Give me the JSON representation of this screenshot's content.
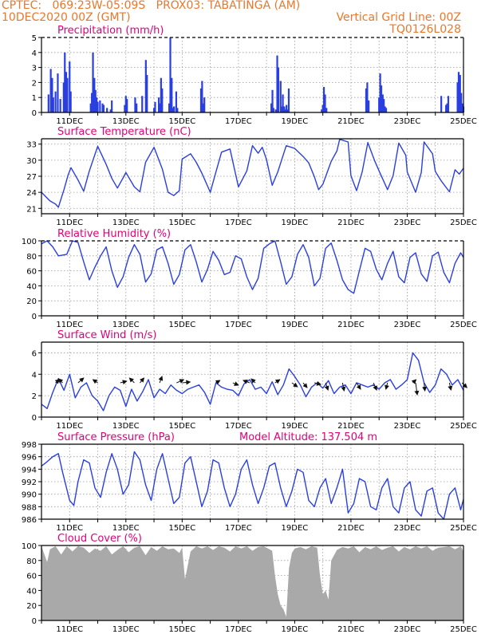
{
  "header": {
    "line1": "CPTEC:   069:23W-05:09S   PROX03: TABATINGA (AM)",
    "date": "10DEC2020 00Z (GMT)",
    "grid_note": "Vertical Grid Line: 00Z",
    "code": "TQ0126L028"
  },
  "colors": {
    "header_text": "#e8782c",
    "panel_title": "#e0007a",
    "series_line": "#2a3fe0",
    "bars": "#2a3fe0",
    "cloud_fill": "#a9a9a9",
    "wind_arrows": "#111111"
  },
  "chart_data": [
    {
      "id": "precip",
      "type": "bar",
      "title": "Precipitation (mm/h)",
      "x_range": [
        10,
        25
      ],
      "ylim": [
        0,
        5
      ],
      "yticks": [
        0,
        1,
        2,
        3,
        4,
        5
      ],
      "xticks": [
        "11DEC",
        "13DEC",
        "15DEC",
        "17DEC",
        "19DEC",
        "21DEC",
        "23DEC",
        "25DEC"
      ],
      "x": [
        10.25,
        10.33,
        10.38,
        10.42,
        10.5,
        10.58,
        10.67,
        10.79,
        10.83,
        10.88,
        10.92,
        11.0,
        11.04,
        11.75,
        11.79,
        11.83,
        11.88,
        11.92,
        11.96,
        12.0,
        12.08,
        12.17,
        12.21,
        12.33,
        12.46,
        12.5,
        12.96,
        13.0,
        13.04,
        13.33,
        13.38,
        13.58,
        13.71,
        13.75,
        14.0,
        14.04,
        14.17,
        14.21,
        14.25,
        14.29,
        14.54,
        14.58,
        14.63,
        14.67,
        14.71,
        14.79,
        14.83,
        15.67,
        15.71,
        15.75,
        15.79,
        18.17,
        18.21,
        18.25,
        18.33,
        18.38,
        18.42,
        18.5,
        18.54,
        18.58,
        18.63,
        18.67,
        18.71,
        18.75,
        18.79,
        19.96,
        20.0,
        20.04,
        20.08,
        20.13,
        21.54,
        21.58,
        21.63,
        22.0,
        22.04,
        22.08,
        22.13,
        22.17,
        22.21,
        22.25,
        24.21,
        24.38,
        24.42,
        24.46,
        24.79,
        24.83,
        24.88,
        24.92,
        24.96,
        25.0
      ],
      "values": [
        1.2,
        2.9,
        2.3,
        1.0,
        1.4,
        2.6,
        0.9,
        2.0,
        4.0,
        2.7,
        2.3,
        3.4,
        1.4,
        0.6,
        1.3,
        4.0,
        2.3,
        1.5,
        1.0,
        0.7,
        0.8,
        0.6,
        0.5,
        0.3,
        0.2,
        0.8,
        0.5,
        1.1,
        0.9,
        1.0,
        0.6,
        1.1,
        3.5,
        2.5,
        0.3,
        0.7,
        1.0,
        0.6,
        2.3,
        1.6,
        0.6,
        5.0,
        2.3,
        0.3,
        0.4,
        1.4,
        0.3,
        1.6,
        2.1,
        0.6,
        1.0,
        0.6,
        1.5,
        0.3,
        0.2,
        3.8,
        3.0,
        2.1,
        0.4,
        1.2,
        0.4,
        0.2,
        0.5,
        0.2,
        1.6,
        0.2,
        0.5,
        1.7,
        1.2,
        0.3,
        1.6,
        2.0,
        0.8,
        1.0,
        2.6,
        1.8,
        1.2,
        0.9,
        0.4,
        0.3,
        1.1,
        0.5,
        0.6,
        1.1,
        2.0,
        2.7,
        2.5,
        1.3,
        0.6,
        0.4
      ]
    },
    {
      "id": "temp",
      "type": "line",
      "title": "Surface Temperature (nC)",
      "x_range": [
        10,
        25
      ],
      "ylim": [
        20,
        34
      ],
      "yticks": [
        21,
        24,
        27,
        30,
        33
      ],
      "xticks": [
        "11DEC",
        "13DEC",
        "15DEC",
        "17DEC",
        "19DEC",
        "21DEC",
        "23DEC",
        "25DEC"
      ],
      "x": [
        10.0,
        10.3,
        10.5,
        10.6,
        10.8,
        10.95,
        11.05,
        11.3,
        11.5,
        11.7,
        12.0,
        12.3,
        12.5,
        12.7,
        12.9,
        13.0,
        13.3,
        13.5,
        13.7,
        14.0,
        14.3,
        14.5,
        14.7,
        14.9,
        15.0,
        15.3,
        15.5,
        15.7,
        16.0,
        16.2,
        16.4,
        16.7,
        16.9,
        17.0,
        17.3,
        17.5,
        17.7,
        17.85,
        18.0,
        18.2,
        18.4,
        18.7,
        19.0,
        19.3,
        19.5,
        19.7,
        19.85,
        20.0,
        20.3,
        20.5,
        20.6,
        20.9,
        21.0,
        21.2,
        21.4,
        21.6,
        21.85,
        22.0,
        22.3,
        22.5,
        22.7,
        22.95,
        23.0,
        23.3,
        23.5,
        23.6,
        23.9,
        24.0,
        24.2,
        24.5,
        24.7,
        24.85,
        25.0
      ],
      "values": [
        24.0,
        22.4,
        21.8,
        21.2,
        24.5,
        27.3,
        28.6,
        26.3,
        24.2,
        28.0,
        32.6,
        29.2,
        26.6,
        24.8,
        26.7,
        27.7,
        25.0,
        24.1,
        29.6,
        32.4,
        28.3,
        24.0,
        23.4,
        24.3,
        30.2,
        31.2,
        29.6,
        27.6,
        24.0,
        27.8,
        31.5,
        32.1,
        27.4,
        25.0,
        28.0,
        32.7,
        31.3,
        32.4,
        30.1,
        25.3,
        27.8,
        32.7,
        32.2,
        30.7,
        29.5,
        26.9,
        24.5,
        25.5,
        29.8,
        31.7,
        33.9,
        33.4,
        27.1,
        24.3,
        27.8,
        33.3,
        29.8,
        28.0,
        24.5,
        27.1,
        33.2,
        30.9,
        27.8,
        24.0,
        27.7,
        33.4,
        31.2,
        27.9,
        26.2,
        24.1,
        28.2,
        27.4,
        28.5
      ]
    },
    {
      "id": "rh",
      "type": "line",
      "title": "Relative Humidity (%)",
      "x_range": [
        10,
        25
      ],
      "ylim": [
        0,
        100
      ],
      "yticks": [
        0,
        20,
        40,
        60,
        80,
        100
      ],
      "xticks": [
        "11DEC",
        "13DEC",
        "15DEC",
        "17DEC",
        "19DEC",
        "21DEC",
        "23DEC",
        "25DEC"
      ],
      "x": [
        10.0,
        10.2,
        10.4,
        10.6,
        10.9,
        11.1,
        11.3,
        11.5,
        11.7,
        11.9,
        12.1,
        12.3,
        12.5,
        12.7,
        12.9,
        13.1,
        13.3,
        13.5,
        13.7,
        13.9,
        14.1,
        14.3,
        14.5,
        14.7,
        14.9,
        15.1,
        15.3,
        15.5,
        15.7,
        15.9,
        16.1,
        16.3,
        16.5,
        16.7,
        16.9,
        17.1,
        17.3,
        17.5,
        17.7,
        17.9,
        18.1,
        18.3,
        18.5,
        18.7,
        18.9,
        19.1,
        19.3,
        19.5,
        19.7,
        19.9,
        20.1,
        20.3,
        20.5,
        20.7,
        20.9,
        21.1,
        21.3,
        21.5,
        21.7,
        21.9,
        22.1,
        22.3,
        22.5,
        22.7,
        22.9,
        23.1,
        23.3,
        23.5,
        23.7,
        23.9,
        24.1,
        24.3,
        24.5,
        24.7,
        24.9,
        25.0
      ],
      "values": [
        96,
        100,
        92,
        80,
        82,
        100,
        98,
        72,
        48,
        65,
        80,
        92,
        60,
        38,
        52,
        78,
        95,
        82,
        45,
        56,
        88,
        92,
        70,
        42,
        55,
        88,
        95,
        72,
        45,
        62,
        86,
        74,
        55,
        58,
        80,
        76,
        52,
        35,
        50,
        90,
        96,
        100,
        72,
        42,
        52,
        82,
        95,
        78,
        40,
        50,
        90,
        97,
        74,
        48,
        35,
        30,
        60,
        90,
        86,
        62,
        48,
        70,
        86,
        52,
        44,
        78,
        84,
        56,
        46,
        80,
        85,
        58,
        44,
        70,
        84,
        78
      ]
    },
    {
      "id": "wind",
      "type": "line",
      "title": "Surface Wind (m/s)",
      "x_range": [
        10,
        25
      ],
      "ylim": [
        0,
        7
      ],
      "yticks": [
        0,
        2,
        4,
        6
      ],
      "xticks": [
        "11DEC",
        "13DEC",
        "15DEC",
        "17DEC",
        "19DEC",
        "21DEC",
        "23DEC",
        "25DEC"
      ],
      "x": [
        10.0,
        10.2,
        10.4,
        10.6,
        10.8,
        11.0,
        11.2,
        11.4,
        11.6,
        11.8,
        12.0,
        12.2,
        12.4,
        12.6,
        12.8,
        13.0,
        13.2,
        13.4,
        13.6,
        13.8,
        14.0,
        14.2,
        14.4,
        14.6,
        14.8,
        15.0,
        15.2,
        15.4,
        15.6,
        15.8,
        16.0,
        16.2,
        16.4,
        16.6,
        16.8,
        17.0,
        17.2,
        17.4,
        17.6,
        17.8,
        18.0,
        18.2,
        18.4,
        18.6,
        18.8,
        19.0,
        19.2,
        19.4,
        19.6,
        19.8,
        20.0,
        20.2,
        20.4,
        20.6,
        20.8,
        21.0,
        21.2,
        21.4,
        21.6,
        21.8,
        22.0,
        22.2,
        22.4,
        22.6,
        22.8,
        23.0,
        23.2,
        23.4,
        23.6,
        23.8,
        24.0,
        24.2,
        24.4,
        24.6,
        24.8,
        25.0
      ],
      "values": [
        1.2,
        0.8,
        2.3,
        3.6,
        2.5,
        4.0,
        1.8,
        2.8,
        3.2,
        2.0,
        1.5,
        0.6,
        2.0,
        2.8,
        2.5,
        1.0,
        2.6,
        1.5,
        2.4,
        3.5,
        1.8,
        2.6,
        2.2,
        3.0,
        2.5,
        2.2,
        2.6,
        2.8,
        3.0,
        2.3,
        1.2,
        3.2,
        2.8,
        2.6,
        2.5,
        2.0,
        3.1,
        3.5,
        2.6,
        2.8,
        2.2,
        3.3,
        2.1,
        3.0,
        4.5,
        3.8,
        3.0,
        1.9,
        2.8,
        3.2,
        2.7,
        3.4,
        2.2,
        2.8,
        3.0,
        2.2,
        3.2,
        3.0,
        2.8,
        3.0,
        2.6,
        3.2,
        3.5,
        2.6,
        3.0,
        3.5,
        6.0,
        5.3,
        3.2,
        2.3,
        3.0,
        4.5,
        4.0,
        3.0,
        3.5,
        2.5
      ]
    },
    {
      "id": "pressure",
      "type": "line",
      "title": "Surface Pressure (hPa)",
      "annotation": "Model Altitude: 137.504  m",
      "x_range": [
        10,
        25
      ],
      "ylim": [
        986,
        998
      ],
      "yticks": [
        986,
        988,
        990,
        992,
        994,
        996,
        998
      ],
      "xticks": [
        "11DEC",
        "13DEC",
        "15DEC",
        "17DEC",
        "19DEC",
        "21DEC",
        "23DEC",
        "25DEC"
      ],
      "x": [
        10.0,
        10.2,
        10.4,
        10.6,
        10.75,
        11.0,
        11.15,
        11.3,
        11.5,
        11.7,
        11.9,
        12.1,
        12.3,
        12.5,
        12.7,
        12.9,
        13.1,
        13.3,
        13.5,
        13.7,
        13.9,
        14.1,
        14.3,
        14.5,
        14.7,
        14.9,
        15.1,
        15.3,
        15.5,
        15.7,
        15.9,
        16.1,
        16.3,
        16.5,
        16.7,
        16.9,
        17.1,
        17.3,
        17.5,
        17.7,
        17.9,
        18.1,
        18.3,
        18.5,
        18.7,
        18.9,
        19.1,
        19.3,
        19.5,
        19.7,
        19.9,
        20.1,
        20.3,
        20.5,
        20.7,
        20.9,
        21.1,
        21.3,
        21.5,
        21.7,
        21.9,
        22.1,
        22.3,
        22.5,
        22.7,
        22.9,
        23.1,
        23.3,
        23.5,
        23.7,
        23.9,
        24.1,
        24.3,
        24.5,
        24.7,
        24.9,
        25.0
      ],
      "values": [
        994.5,
        995.2,
        996.0,
        996.5,
        993.5,
        989.0,
        988.2,
        992.0,
        995.5,
        995.0,
        991.0,
        989.5,
        993.5,
        996.5,
        994.0,
        990.0,
        991.5,
        996.8,
        995.5,
        991.5,
        989.0,
        994.0,
        996.5,
        992.5,
        988.5,
        989.5,
        995.0,
        996.0,
        992.0,
        988.0,
        990.5,
        995.5,
        995.0,
        991.0,
        988.0,
        990.0,
        994.0,
        995.5,
        991.5,
        988.5,
        991.0,
        994.5,
        995.0,
        991.0,
        988.0,
        990.5,
        994.0,
        993.5,
        989.0,
        988.0,
        991.0,
        992.5,
        988.5,
        991.0,
        994.0,
        987.0,
        988.5,
        992.5,
        992.0,
        988.0,
        987.5,
        991.0,
        992.5,
        988.0,
        987.0,
        991.0,
        992.0,
        987.5,
        986.5,
        990.5,
        991.0,
        987.0,
        986.0,
        990.0,
        991.0,
        987.5,
        989.2
      ]
    },
    {
      "id": "cloud",
      "type": "area",
      "title": "Cloud Cover (%)",
      "x_range": [
        10,
        25
      ],
      "ylim": [
        0,
        100
      ],
      "yticks": [
        0,
        20,
        40,
        60,
        80,
        100
      ],
      "xticks": [
        "11DEC",
        "13DEC",
        "15DEC",
        "17DEC",
        "19DEC",
        "21DEC",
        "23DEC",
        "25DEC"
      ],
      "x": [
        10.0,
        10.2,
        10.3,
        10.5,
        10.7,
        10.9,
        11.1,
        11.3,
        11.5,
        11.7,
        11.9,
        12.1,
        12.3,
        12.5,
        12.7,
        12.9,
        13.1,
        13.3,
        13.5,
        13.7,
        13.9,
        14.1,
        14.3,
        14.5,
        14.7,
        14.9,
        15.0,
        15.1,
        15.3,
        15.5,
        15.7,
        15.9,
        16.1,
        16.3,
        16.5,
        16.7,
        16.9,
        17.1,
        17.3,
        17.5,
        17.7,
        17.9,
        18.0,
        18.2,
        18.3,
        18.4,
        18.5,
        18.6,
        18.7,
        18.8,
        18.9,
        19.0,
        19.2,
        19.4,
        19.6,
        19.8,
        19.9,
        20.0,
        20.1,
        20.2,
        20.3,
        20.5,
        20.7,
        20.9,
        21.1,
        21.3,
        21.5,
        21.7,
        21.9,
        22.1,
        22.3,
        22.5,
        22.7,
        22.9,
        23.1,
        23.3,
        23.5,
        23.7,
        23.9,
        24.1,
        24.3,
        24.5,
        24.7,
        24.9,
        25.0
      ],
      "values": [
        99,
        78,
        95,
        99,
        88,
        99,
        92,
        99,
        97,
        90,
        96,
        93,
        99,
        88,
        94,
        99,
        91,
        97,
        99,
        87,
        98,
        93,
        99,
        95,
        96,
        90,
        97,
        55,
        92,
        99,
        96,
        99,
        94,
        99,
        97,
        92,
        99,
        96,
        99,
        93,
        98,
        99,
        97,
        93,
        60,
        35,
        20,
        15,
        5,
        70,
        90,
        96,
        98,
        95,
        99,
        97,
        60,
        35,
        40,
        28,
        80,
        94,
        98,
        96,
        99,
        91,
        98,
        95,
        99,
        94,
        97,
        99,
        92,
        98,
        95,
        99,
        96,
        99,
        93,
        97,
        98,
        99,
        95,
        99,
        92
      ]
    }
  ],
  "wind_arrows": [
    {
      "x": 10.5,
      "dx": 0.5,
      "dy": -0.4
    },
    {
      "x": 10.75,
      "dx": -0.5,
      "dy": -0.5
    },
    {
      "x": 11.3,
      "dx": 0.7,
      "dy": -0.6
    },
    {
      "x": 12.0,
      "dx": -0.6,
      "dy": -0.4
    },
    {
      "x": 12.8,
      "dx": 0.8,
      "dy": -0.2
    },
    {
      "x": 13.3,
      "dx": -0.6,
      "dy": -0.6
    },
    {
      "x": 13.5,
      "dx": 0.5,
      "dy": -0.6
    },
    {
      "x": 14.2,
      "dx": 0.3,
      "dy": -0.8
    },
    {
      "x": 14.8,
      "dx": 0.9,
      "dy": -0.4
    },
    {
      "x": 15.0,
      "dx": 1.0,
      "dy": -0.1
    },
    {
      "x": 16.2,
      "dx": 0.5,
      "dy": -0.3
    },
    {
      "x": 16.8,
      "dx": 0.7,
      "dy": 0.3
    },
    {
      "x": 17.4,
      "dx": -0.8,
      "dy": -0.3
    },
    {
      "x": 17.6,
      "dx": -0.5,
      "dy": -0.5
    },
    {
      "x": 18.3,
      "dx": 0.6,
      "dy": -0.4
    },
    {
      "x": 18.9,
      "dx": 0.7,
      "dy": 0.5
    },
    {
      "x": 19.3,
      "dx": 0.5,
      "dy": 0.6
    },
    {
      "x": 19.7,
      "dx": 0.8,
      "dy": 0.2
    },
    {
      "x": 20.1,
      "dx": 0.3,
      "dy": 0.9
    },
    {
      "x": 20.7,
      "dx": 0.2,
      "dy": 1.0
    },
    {
      "x": 21.2,
      "dx": 0.5,
      "dy": 0.8
    },
    {
      "x": 21.8,
      "dx": 0.4,
      "dy": 0.9
    },
    {
      "x": 22.3,
      "dx": -0.2,
      "dy": 0.8
    },
    {
      "x": 23.2,
      "dx": 0.4,
      "dy": -0.4
    },
    {
      "x": 23.3,
      "dx": 0.2,
      "dy": 1.5
    },
    {
      "x": 23.6,
      "dx": 0.1,
      "dy": 1.0
    },
    {
      "x": 24.5,
      "dx": 0.2,
      "dy": 0.9
    },
    {
      "x": 24.95,
      "dx": 0.6,
      "dy": 0.6
    }
  ]
}
